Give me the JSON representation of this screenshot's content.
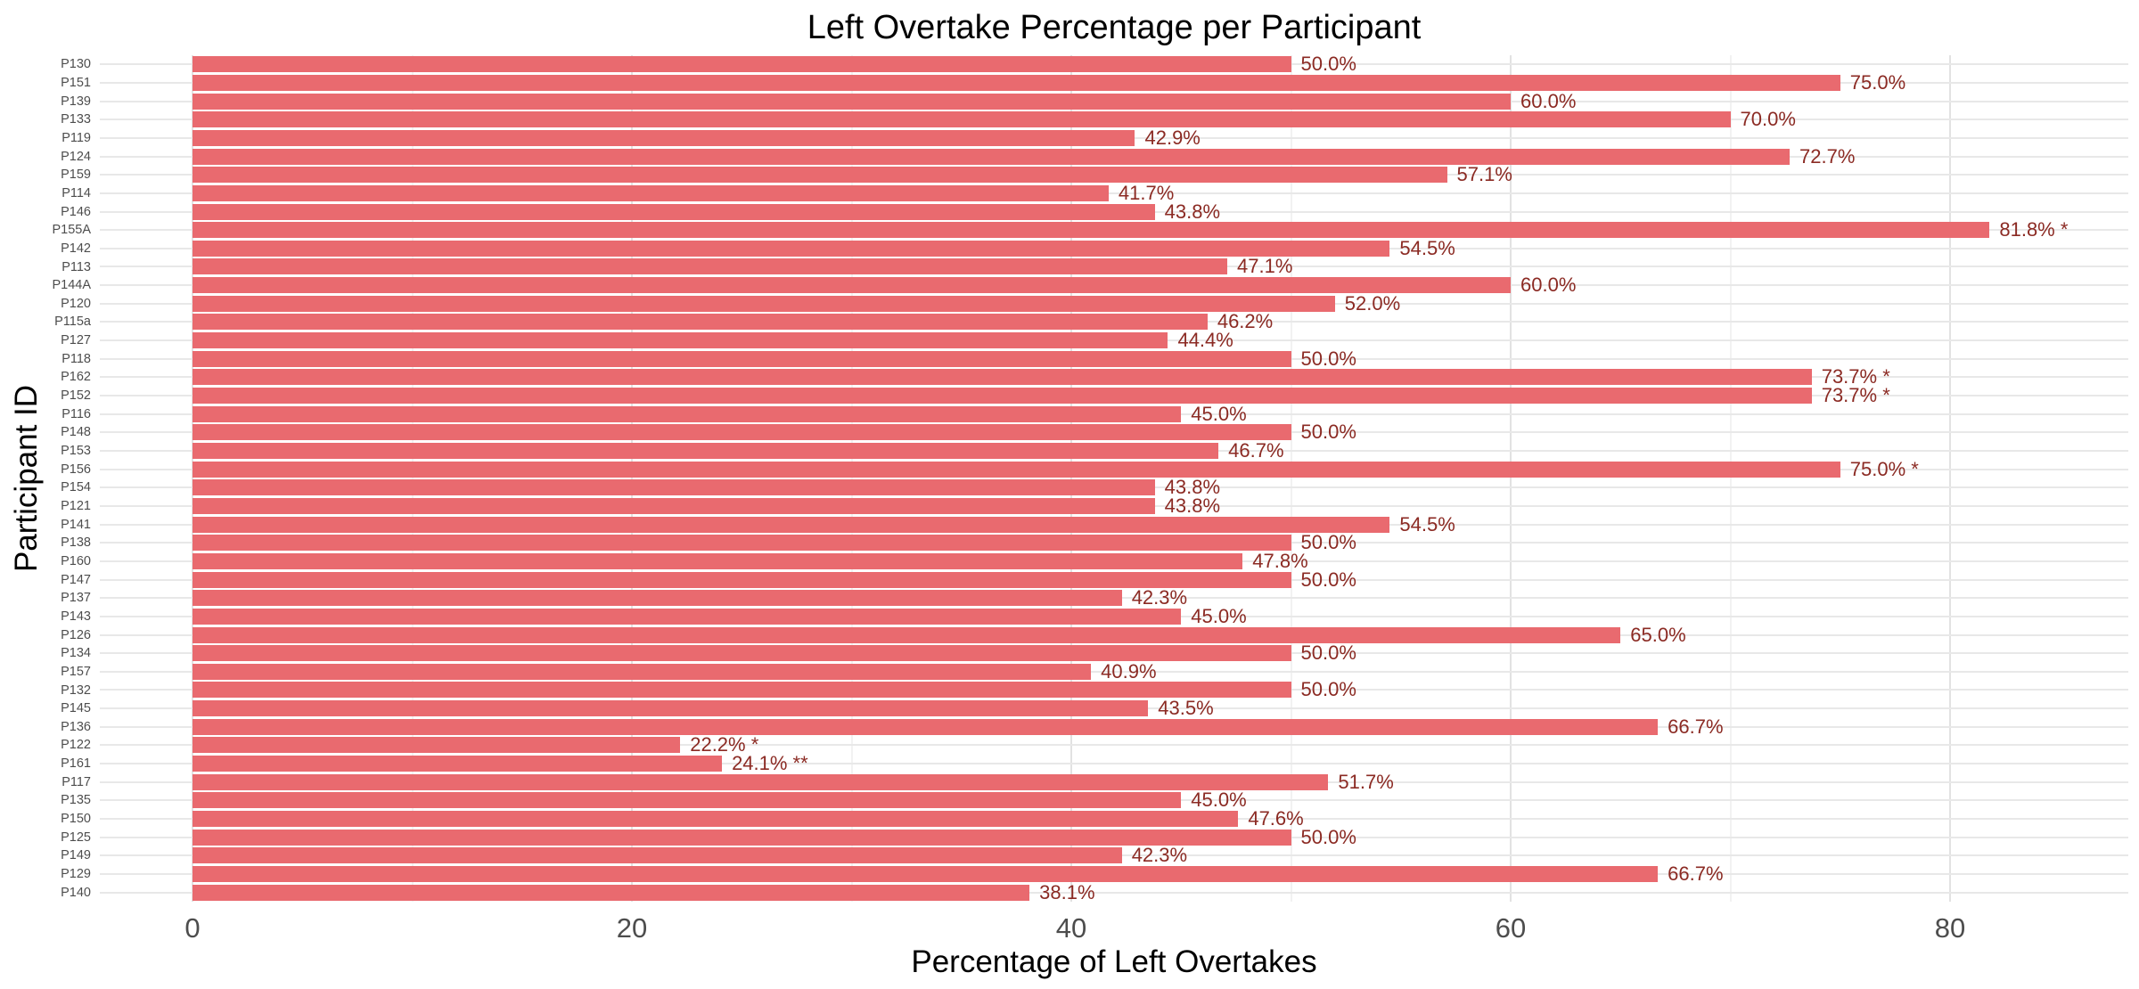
{
  "title": "Left Overtake Percentage per Participant",
  "colors": {
    "bar_fill": "#e96a6f",
    "value_label": "#8b2a23",
    "axis_tick_label": "#4d4d4d",
    "grid_major": "#e2e2e2",
    "grid_minor": "#f2f2f2",
    "row_grid": "#e8e8e8",
    "background": "#ffffff",
    "title_text": "#000000"
  },
  "chart_data": {
    "type": "bar",
    "orientation": "horizontal",
    "title": "Left Overtake Percentage per Participant",
    "xlabel": "Percentage of Left Overtakes",
    "ylabel": "Participant ID",
    "xlim": [
      -4.2,
      88.3
    ],
    "x_major_ticks": [
      0,
      20,
      40,
      60,
      80
    ],
    "x_minor_gridlines": [
      10,
      30,
      50,
      70
    ],
    "grid": "on",
    "legend": "none",
    "categories": [
      "P130",
      "P151",
      "P139",
      "P133",
      "P119",
      "P124",
      "P159",
      "P114",
      "P146",
      "P155A",
      "P142",
      "P113",
      "P144A",
      "P120",
      "P115a",
      "P127",
      "P118",
      "P162",
      "P152",
      "P116",
      "P148",
      "P153",
      "P156",
      "P154",
      "P121",
      "P141",
      "P138",
      "P160",
      "P147",
      "P137",
      "P143",
      "P126",
      "P134",
      "P157",
      "P132",
      "P145",
      "P136",
      "P122",
      "P161",
      "P117",
      "P135",
      "P150",
      "P125",
      "P149",
      "P129",
      "P140"
    ],
    "values": [
      50.0,
      75.0,
      60.0,
      70.0,
      42.9,
      72.7,
      57.1,
      41.7,
      43.8,
      81.8,
      54.5,
      47.1,
      60.0,
      52.0,
      46.2,
      44.4,
      50.0,
      73.7,
      73.7,
      45.0,
      50.0,
      46.7,
      75.0,
      43.8,
      43.8,
      54.5,
      50.0,
      47.8,
      50.0,
      42.3,
      45.0,
      65.0,
      50.0,
      40.9,
      50.0,
      43.5,
      66.7,
      22.2,
      24.1,
      51.7,
      45.0,
      47.6,
      50.0,
      42.3,
      66.7,
      38.1
    ],
    "bar_labels": [
      "50.0%",
      "75.0%",
      "60.0%",
      "70.0%",
      "42.9%",
      "72.7%",
      "57.1%",
      "41.7%",
      "43.8%",
      "81.8% *",
      "54.5%",
      "47.1%",
      "60.0%",
      "52.0%",
      "46.2%",
      "44.4%",
      "50.0%",
      "73.7% *",
      "73.7% *",
      "45.0%",
      "50.0%",
      "46.7%",
      "75.0% *",
      "43.8%",
      "43.8%",
      "54.5%",
      "50.0%",
      "47.8%",
      "50.0%",
      "42.3%",
      "45.0%",
      "65.0%",
      "50.0%",
      "40.9%",
      "50.0%",
      "43.5%",
      "66.7%",
      "22.2% *",
      "24.1% **",
      "51.7%",
      "45.0%",
      "47.6%",
      "50.0%",
      "42.3%",
      "66.7%",
      "38.1%"
    ],
    "significance_note": "* and ** markers follow some bar labels"
  }
}
